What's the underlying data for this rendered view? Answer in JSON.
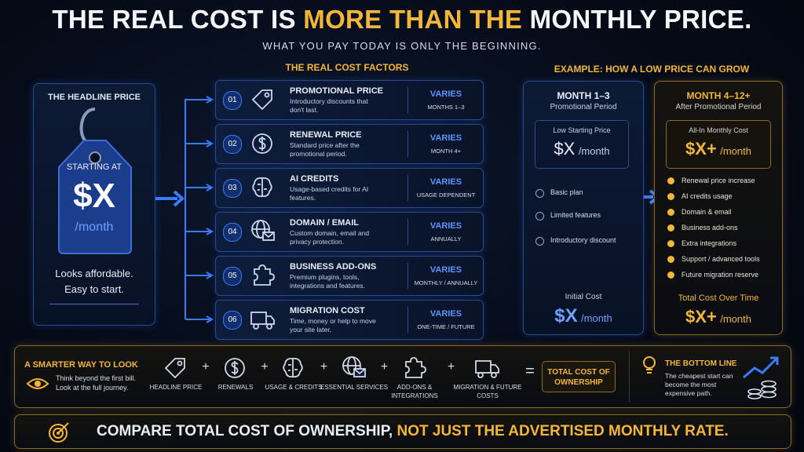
{
  "header": {
    "title_parts": [
      "THE REAL COST IS ",
      "MORE THAN THE",
      " MONTHLY PRICE."
    ],
    "subtitle": "WHAT YOU PAY TODAY IS ONLY THE BEGINNING."
  },
  "headline": {
    "title": "THE HEADLINE PRICE",
    "tag_label": "STARTING AT",
    "price": "$X",
    "unit": "/month",
    "notes": [
      "Looks affordable.",
      "Easy to start."
    ]
  },
  "factors": {
    "title": "THE REAL COST FACTORS",
    "items": [
      {
        "number": "01",
        "title": "PROMOTIONAL PRICE",
        "description": "Introductory discounts that don't last.",
        "cost": "VARIES",
        "timing": "MONTHS 1–3"
      },
      {
        "number": "02",
        "title": "RENEWAL PRICE",
        "description": "Standard price after the promotional period.",
        "cost": "VARIES",
        "timing": "MONTH 4+"
      },
      {
        "number": "03",
        "title": "AI CREDITS",
        "description": "Usage-based credits for AI features.",
        "cost": "VARIES",
        "timing": "USAGE DEPENDENT"
      },
      {
        "number": "04",
        "title": "DOMAIN / EMAIL",
        "description": "Custom domain, email and privacy protection.",
        "cost": "VARIES",
        "timing": "ANNUALLY"
      },
      {
        "number": "05",
        "title": "BUSINESS ADD-ONS",
        "description": "Premium plugins, tools, integrations and features.",
        "cost": "VARIES",
        "timing": "MONTHLY / ANNUALLY"
      },
      {
        "number": "06",
        "title": "MIGRATION COST",
        "description": "Time, money or help to move your site later.",
        "cost": "VARIES",
        "timing": "ONE-TIME / FUTURE"
      }
    ]
  },
  "example": {
    "title": "EXAMPLE: HOW A LOW PRICE CAN GROW",
    "before": {
      "period": "MONTH 1–3",
      "subtitle": "Promotional Period",
      "box_label": "Low Starting Price",
      "price": "$X",
      "unit": "/month",
      "features": [
        "Basic plan",
        "Limited features",
        "Introductory discount"
      ],
      "total_label": "Initial Cost",
      "total_price": "$X",
      "total_unit": "/month"
    },
    "after": {
      "period": "MONTH 4–12+",
      "subtitle": "After Promotional Period",
      "box_label": "All-In Monthly Cost",
      "price": "$X+",
      "unit": "/month",
      "items": [
        "Renewal price increase",
        "AI credits usage",
        "Domain & email",
        "Business add-ons",
        "Extra integrations",
        "Support / advanced tools",
        "Future migration reserve"
      ],
      "total_label": "Total Cost Over Time",
      "total_price": "$X+",
      "total_unit": "/month"
    }
  },
  "smarter": {
    "title": "A SMARTER WAY TO LOOK",
    "text": "Think beyond the first bill. Look at the full journey.",
    "components": [
      "HEADLINE PRICE",
      "RENEWALS",
      "USAGE & CREDITS",
      "ESSENTIAL SERVICES",
      "ADD-ONS & INTEGRATIONS",
      "MIGRATION & FUTURE COSTS"
    ],
    "plus": "+",
    "equals": "=",
    "result": "TOTAL COST OF OWNERSHIP"
  },
  "bottom_line": {
    "title": "THE BOTTOM LINE",
    "text": "The cheapest start can become the most expensive path."
  },
  "footer": {
    "parts": [
      "COMPARE TOTAL COST OF OWNERSHIP, ",
      "NOT JUST THE ADVERTISED MONTHLY RATE."
    ]
  }
}
